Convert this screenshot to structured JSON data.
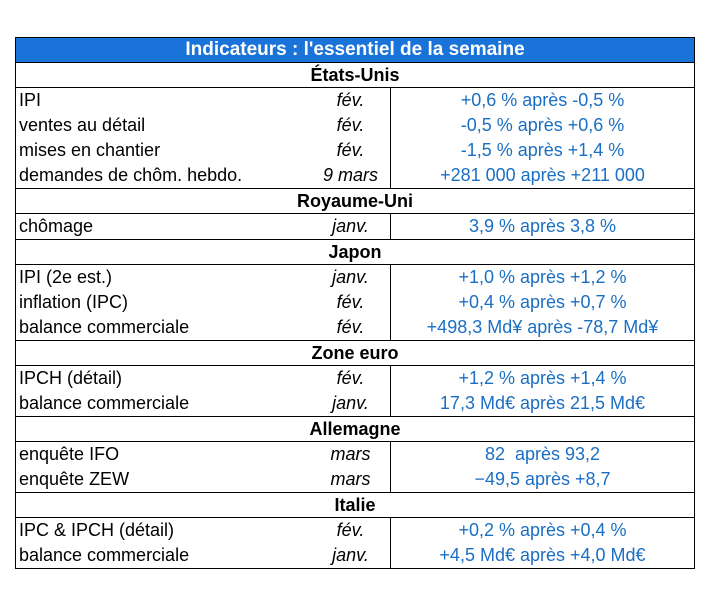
{
  "title": "Indicateurs : l'essentiel de la semaine",
  "sections": [
    {
      "name": "États-Unis",
      "rows": [
        {
          "label": "IPI",
          "period": "fév.",
          "value": "+0,6 % après -0,5 %"
        },
        {
          "label": "ventes au détail",
          "period": "fév.",
          "value": "-0,5 % après +0,6 %"
        },
        {
          "label": "mises en chantier",
          "period": "fév.",
          "value": "-1,5 % après +1,4 %"
        },
        {
          "label": "demandes de chôm. hebdo.",
          "period": "9 mars",
          "value": "+281 000 après +211 000"
        }
      ]
    },
    {
      "name": "Royaume-Uni",
      "rows": [
        {
          "label": "chômage",
          "period": "janv.",
          "value": "3,9 % après 3,8 %"
        }
      ]
    },
    {
      "name": "Japon",
      "rows": [
        {
          "label": "IPI (2e est.)",
          "period": "janv.",
          "value": "+1,0 % après +1,2 %"
        },
        {
          "label": "inflation (IPC)",
          "period": "fév.",
          "value": "+0,4 % après +0,7 %"
        },
        {
          "label": "balance commerciale",
          "period": "fév.",
          "value": "+498,3 Md¥ après -78,7 Md¥"
        }
      ]
    },
    {
      "name": "Zone euro",
      "rows": [
        {
          "label": "IPCH (détail)",
          "period": "fév.",
          "value": "+1,2 % après +1,4 %"
        },
        {
          "label": "balance commerciale",
          "period": "janv.",
          "value": "17,3 Md€ après 21,5 Md€"
        }
      ]
    },
    {
      "name": "Allemagne",
      "rows": [
        {
          "label": "enquête IFO",
          "period": "mars",
          "value": "82  après 93,2"
        },
        {
          "label": "enquête ZEW",
          "period": "mars",
          "value": "−49,5 après +8,7"
        }
      ]
    },
    {
      "name": "Italie",
      "rows": [
        {
          "label": "IPC & IPCH (détail)",
          "period": "fév.",
          "value": "+0,2 % après +0,4 %"
        },
        {
          "label": "balance commerciale",
          "period": "janv.",
          "value": "+4,5 Md€ après +4,0 Md€"
        }
      ]
    }
  ]
}
